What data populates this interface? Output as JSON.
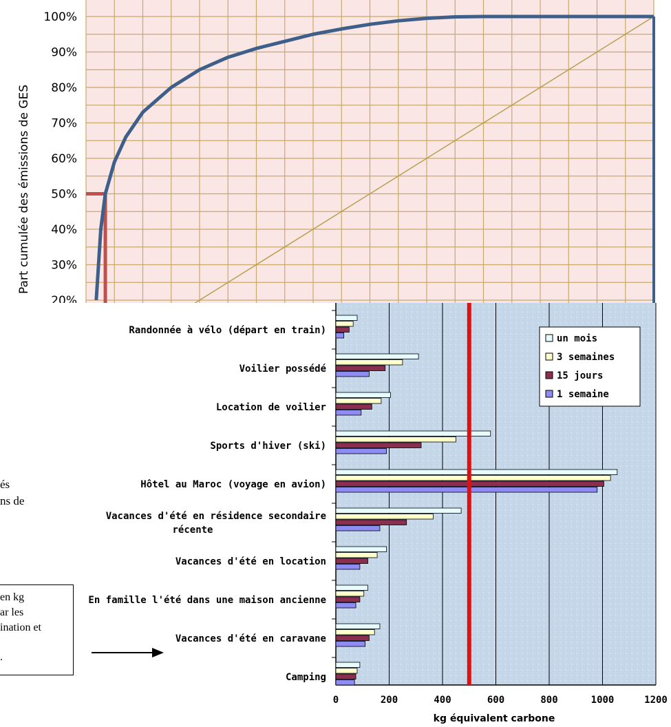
{
  "side_text": {
    "line1": "és",
    "line2": "ns de"
  },
  "note_box": {
    "line1": "en kg",
    "line2": "ar les",
    "line3": "ination et",
    "line4": "."
  },
  "chart_data": [
    {
      "type": "line",
      "title": "",
      "xlabel": "",
      "ylabel": "Part cumulée des émissions de GES",
      "ylim": [
        0.2,
        1.0
      ],
      "y_ticks": [
        "20%",
        "30%",
        "40%",
        "50%",
        "60%",
        "70%",
        "80%",
        "90%",
        "100%"
      ],
      "grid": true,
      "series": [
        {
          "x": [
            0.018,
            0.026,
            0.034,
            0.05,
            0.07,
            0.1,
            0.15,
            0.2,
            0.25,
            0.3,
            0.35,
            0.4,
            0.45,
            0.5,
            0.55,
            0.6,
            0.65,
            0.7,
            0.75,
            0.8,
            0.85,
            0.9,
            0.95,
            1.0
          ],
          "y": [
            0.2,
            0.4,
            0.5,
            0.59,
            0.66,
            0.73,
            0.8,
            0.85,
            0.885,
            0.91,
            0.93,
            0.95,
            0.965,
            0.978,
            0.988,
            0.995,
            0.999,
            1.0,
            1.0,
            1.0,
            1.0,
            1.0,
            1.0,
            1.0
          ]
        },
        {
          "x": [
            0.0,
            1.0
          ],
          "y": [
            0.0,
            1.0
          ]
        }
      ],
      "annotations": [
        {
          "type": "reference",
          "y": 0.5,
          "x": 0.034
        }
      ]
    },
    {
      "type": "bar",
      "orientation": "horizontal",
      "title": "",
      "xlabel": "kg équivalent carbone",
      "ylabel": "",
      "xlim": [
        0,
        1200
      ],
      "x_ticks": [
        "0",
        "200",
        "400",
        "600",
        "800",
        "1000",
        "1200"
      ],
      "legend_position": "top-right",
      "reference_line": 500,
      "categories": [
        "Randonnée à vélo (départ en train)",
        "Voilier possédé",
        "Location de voilier",
        "Sports d'hiver (ski)",
        "Hôtel au Maroc (voyage en avion)",
        "Vacances d'été en résidence secondaire récente",
        "Vacances d'été en location",
        "En famille l'été dans une maison ancienne",
        "Vacances d'été en caravane",
        "Camping"
      ],
      "category_label_lines": [
        [
          "Randonnée à vélo (départ en train)"
        ],
        [
          "Voilier possédé"
        ],
        [
          "Location de voilier"
        ],
        [
          "Sports d'hiver (ski)"
        ],
        [
          "Hôtel au Maroc (voyage en avion)"
        ],
        [
          "Vacances d'été en résidence secondaire",
          "récente"
        ],
        [
          "Vacances d'été en location"
        ],
        [
          "En famille l'été dans une maison ancienne"
        ],
        [
          "Vacances d'été en caravane"
        ],
        [
          "Camping"
        ]
      ],
      "series": [
        {
          "name": "un mois",
          "color": "#e8fbff",
          "values": [
            80,
            310,
            205,
            580,
            1055,
            470,
            190,
            120,
            165,
            90
          ]
        },
        {
          "name": "3 semaines",
          "color": "#ffffcc",
          "values": [
            65,
            250,
            170,
            450,
            1030,
            365,
            155,
            105,
            145,
            80
          ]
        },
        {
          "name": "15 jours",
          "color": "#8c2e4f",
          "values": [
            50,
            185,
            135,
            320,
            1005,
            265,
            120,
            90,
            125,
            75
          ]
        },
        {
          "name": "1 semaine",
          "color": "#8e8cf2",
          "values": [
            30,
            125,
            95,
            190,
            980,
            165,
            90,
            75,
            110,
            70
          ]
        }
      ]
    }
  ]
}
